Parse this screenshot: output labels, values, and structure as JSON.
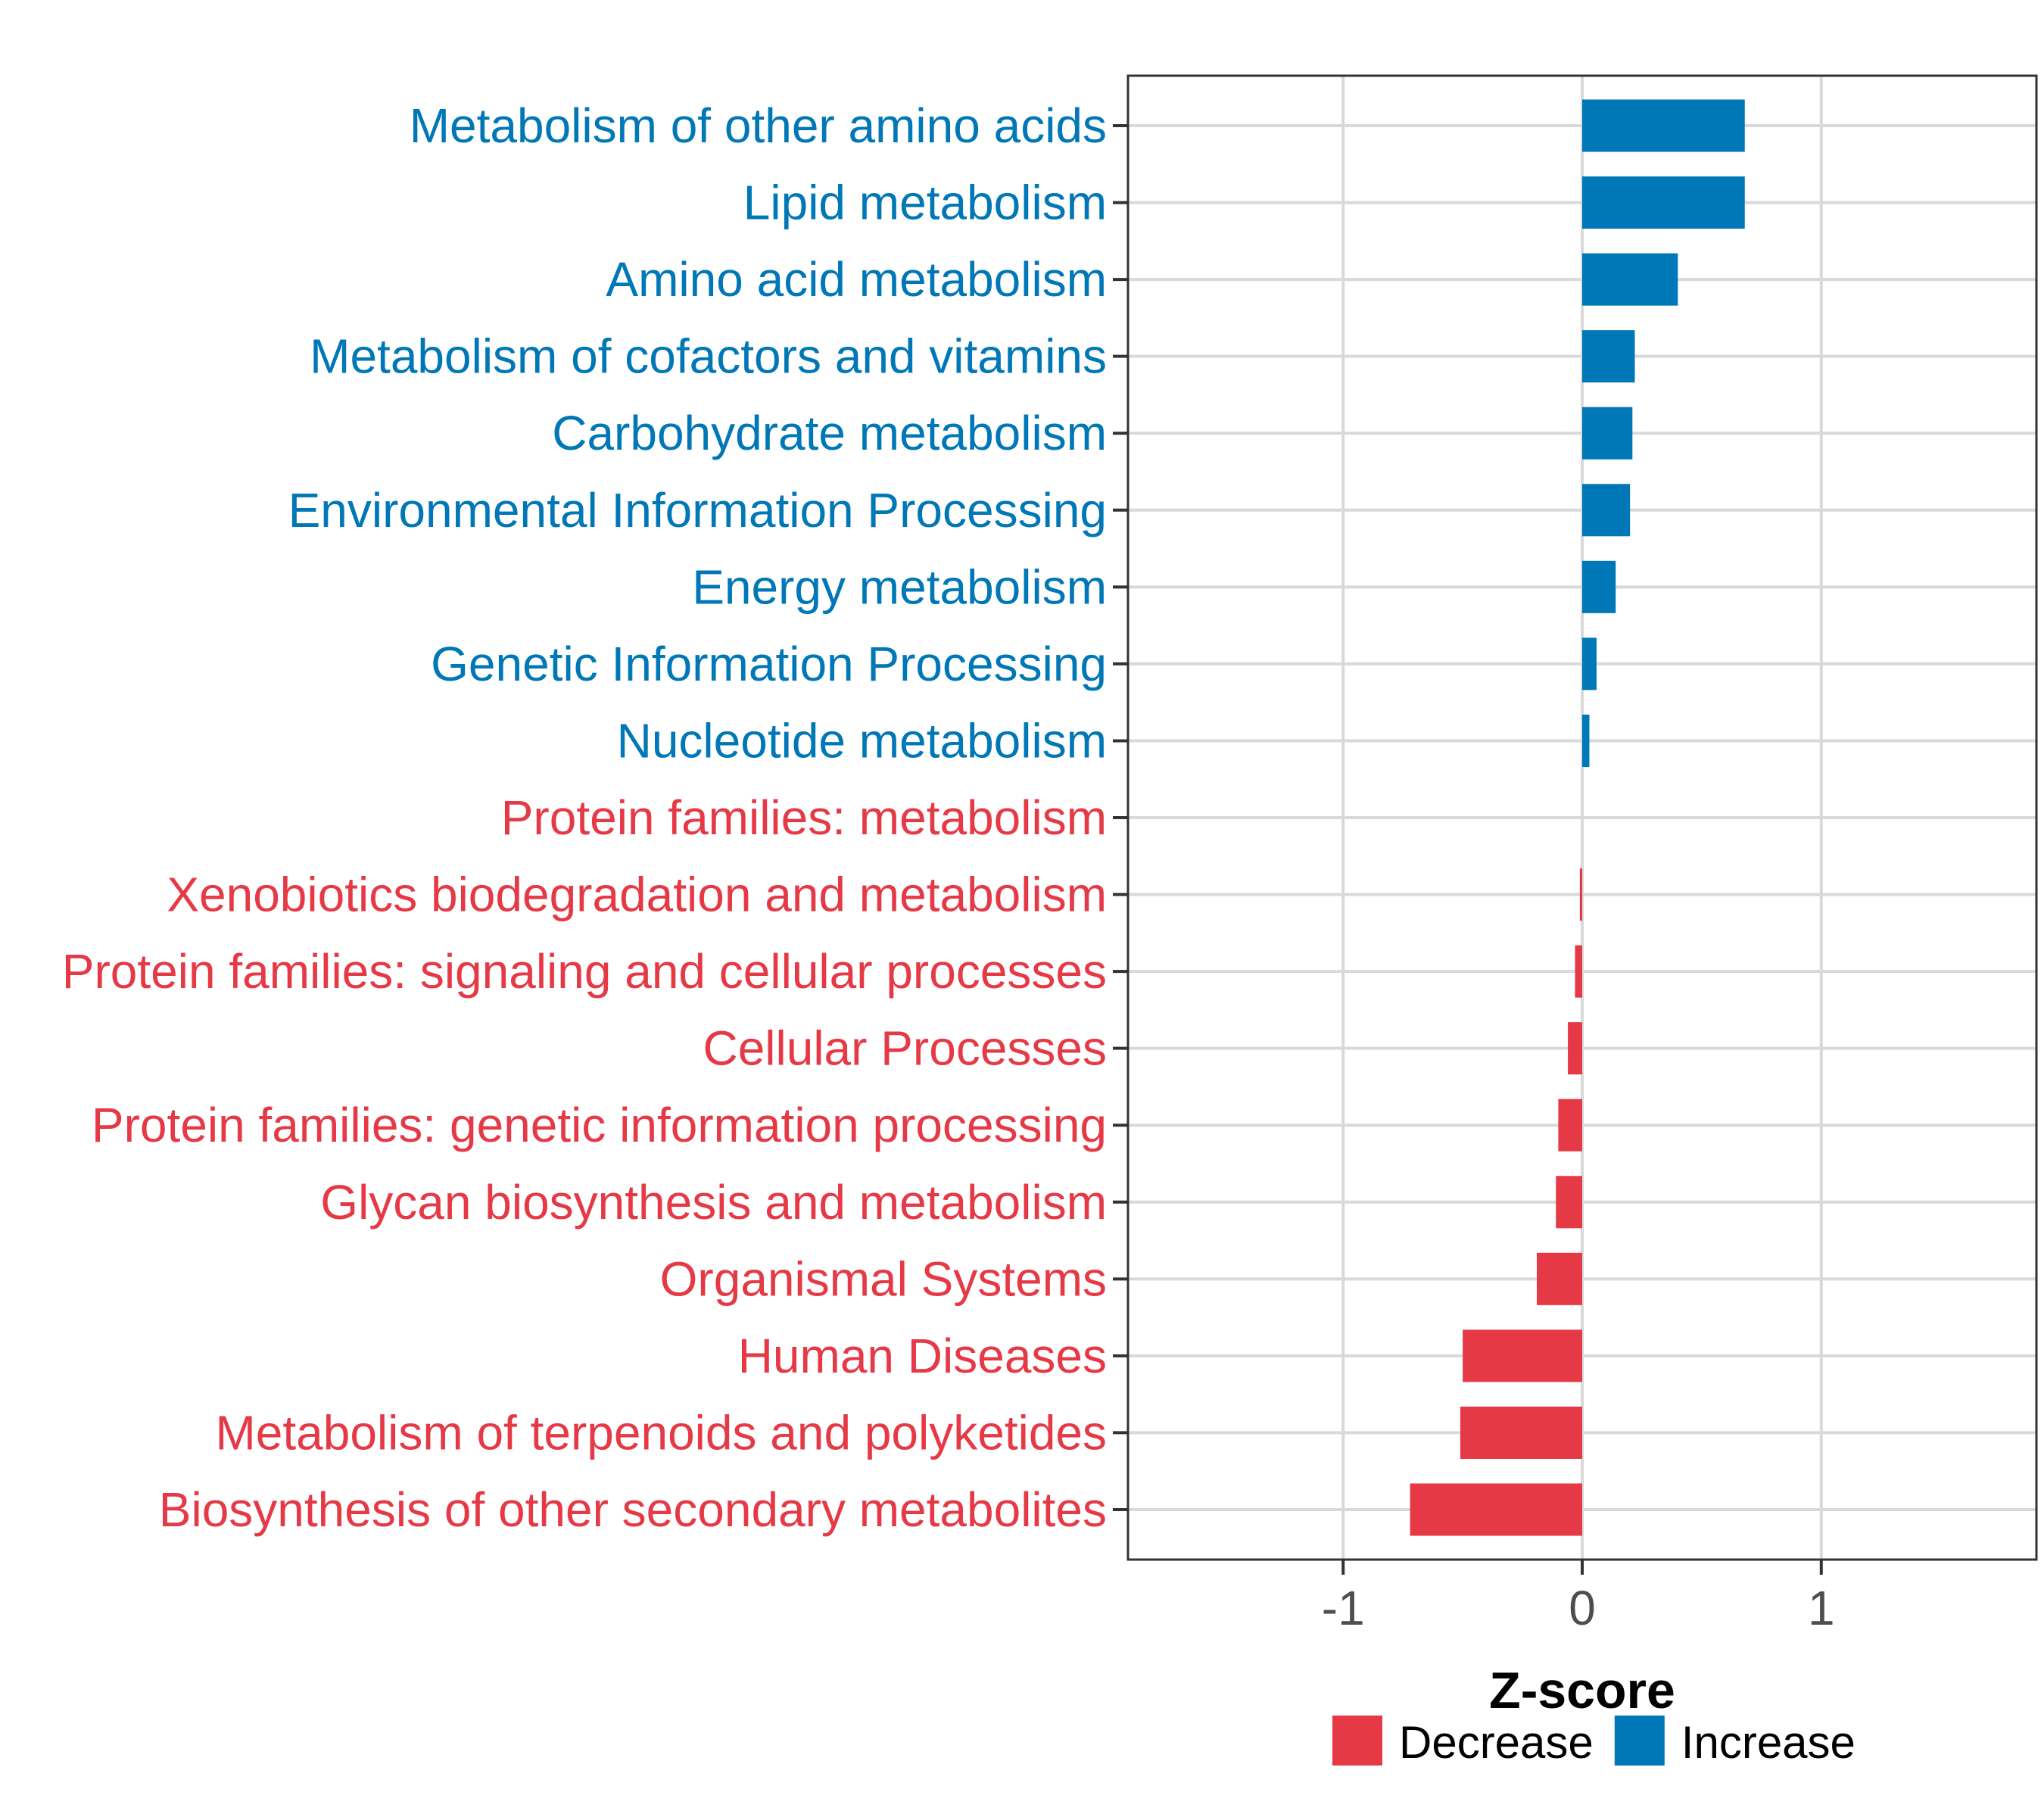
{
  "chart_data": {
    "type": "bar",
    "orientation": "horizontal",
    "xlabel": "Z-score",
    "xlim": [
      -1.9,
      1.9
    ],
    "xticks": [
      -1,
      0,
      1
    ],
    "xtick_labels": [
      "-1",
      "0",
      "1"
    ],
    "grid": true,
    "legend_position": "bottom",
    "colors": {
      "Decrease": "#e63946",
      "Increase": "#0077b6"
    },
    "legend": [
      {
        "name": "Decrease",
        "color": "#e63946"
      },
      {
        "name": "Increase",
        "color": "#0077b6"
      }
    ],
    "categories": [
      "Metabolism of other amino acids",
      "Lipid metabolism",
      "Amino acid metabolism",
      "Metabolism of cofactors and vitamins",
      "Carbohydrate metabolism",
      "Environmental Information Processing",
      "Energy metabolism",
      "Genetic Information Processing",
      "Nucleotide metabolism",
      "Protein families: metabolism",
      "Xenobiotics biodegradation and metabolism",
      "Protein families: signaling and cellular processes",
      "Cellular Processes",
      "Protein families: genetic information processing",
      "Glycan biosynthesis and metabolism",
      "Organismal Systems",
      "Human Diseases",
      "Metabolism of terpenoids and polyketides",
      "Biosynthesis of other secondary metabolites"
    ],
    "values": [
      0.68,
      0.68,
      0.4,
      0.22,
      0.21,
      0.2,
      0.14,
      0.06,
      0.03,
      0.0,
      -0.01,
      -0.03,
      -0.06,
      -0.1,
      -0.11,
      -0.19,
      -0.5,
      -0.51,
      -0.72
    ],
    "groups": [
      "Increase",
      "Increase",
      "Increase",
      "Increase",
      "Increase",
      "Increase",
      "Increase",
      "Increase",
      "Increase",
      "Decrease",
      "Decrease",
      "Decrease",
      "Decrease",
      "Decrease",
      "Decrease",
      "Decrease",
      "Decrease",
      "Decrease",
      "Decrease"
    ]
  }
}
